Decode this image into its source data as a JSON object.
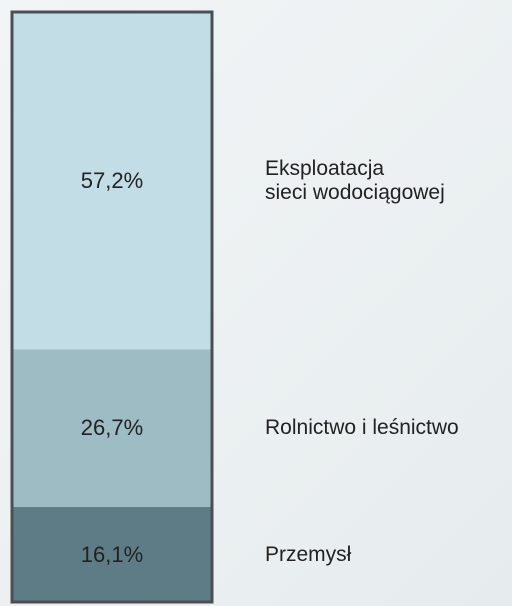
{
  "chart_data": {
    "type": "bar",
    "series": [
      {
        "name": "Eksploatacja\nsieci wodociągowej",
        "color": "#c2dde6",
        "values": [
          57.2
        ],
        "value_labels": [
          "57,2%"
        ]
      },
      {
        "name": "Rolnictwo i leśnictwo",
        "color": "#9dbcc4",
        "values": [
          26.7
        ],
        "value_labels": [
          "26,7%"
        ]
      },
      {
        "name": "Przemysł",
        "color": "#5e7c86",
        "values": [
          16.1
        ],
        "value_labels": [
          "16,1%"
        ]
      }
    ],
    "ylim": [
      0,
      100
    ]
  }
}
